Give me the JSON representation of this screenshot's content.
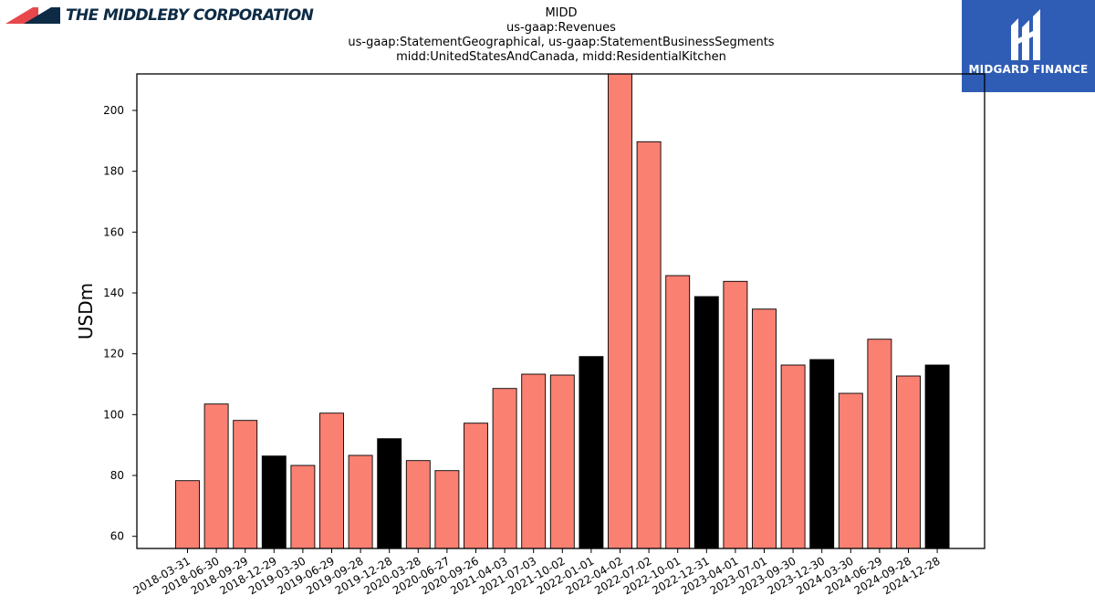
{
  "branding": {
    "company_logo_text": "THE MIDDLEBY CORPORATION",
    "publisher_text": "MIDGARD FINANCE"
  },
  "header": {
    "title_lines": [
      "MIDD",
      "us-gaap:Revenues",
      "us-gaap:StatementGeographical, us-gaap:StatementBusinessSegments",
      "midd:UnitedStatesAndCanada, midd:ResidentialKitchen"
    ]
  },
  "colors": {
    "quarter_bar": "#fa8072",
    "year_end_bar": "#000000",
    "publisher_bg": "#2f5db5",
    "company_navy": "#0d2b45",
    "company_red": "#e8474c"
  },
  "icons": [
    "company-logo-icon",
    "midgard-logo-icon"
  ],
  "chart_data": {
    "type": "bar",
    "title": "MIDD",
    "ylabel": "USDm",
    "xlabel": "",
    "ylim": [
      56,
      212
    ],
    "yticks": [
      60,
      80,
      100,
      120,
      140,
      160,
      180,
      200
    ],
    "grid": false,
    "categories": [
      "2018-03-31",
      "2018-06-30",
      "2018-09-29",
      "2018-12-29",
      "2019-03-30",
      "2019-06-29",
      "2019-09-28",
      "2019-12-28",
      "2020-03-28",
      "2020-06-27",
      "2020-09-26",
      "2021-04-03",
      "2021-07-03",
      "2021-10-02",
      "2022-01-01",
      "2022-04-02",
      "2022-07-02",
      "2022-10-01",
      "2022-12-31",
      "2023-04-01",
      "2023-07-01",
      "2023-09-30",
      "2023-12-30",
      "2024-03-30",
      "2024-06-29",
      "2024-09-28",
      "2024-12-28"
    ],
    "values": [
      78.3,
      103.5,
      98.1,
      86.4,
      83.3,
      100.5,
      86.6,
      92.1,
      84.9,
      81.6,
      97.2,
      108.6,
      113.3,
      113.0,
      119.1,
      212.0,
      189.7,
      145.7,
      138.8,
      143.8,
      134.7,
      116.3,
      118.1,
      107.0,
      124.8,
      112.7,
      116.3
    ],
    "year_end": [
      false,
      false,
      false,
      true,
      false,
      false,
      false,
      true,
      false,
      false,
      false,
      false,
      false,
      false,
      true,
      false,
      false,
      false,
      true,
      false,
      false,
      false,
      true,
      false,
      false,
      false,
      true
    ]
  }
}
